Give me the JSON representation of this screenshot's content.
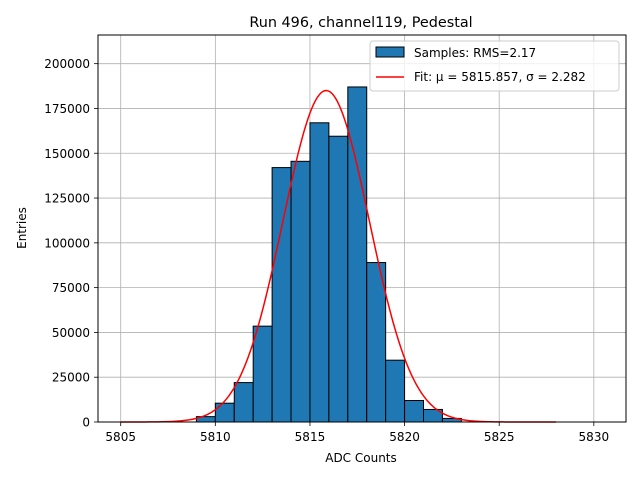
{
  "chart_data": {
    "type": "bar",
    "title": "Run 496, channel119, Pedestal",
    "xlabel": "ADC Counts",
    "ylabel": "Entries",
    "xlim": [
      5803.8,
      5831.7
    ],
    "ylim": [
      0,
      216000
    ],
    "xticks": [
      5805,
      5810,
      5815,
      5820,
      5825,
      5830
    ],
    "yticks": [
      0,
      25000,
      50000,
      75000,
      100000,
      125000,
      150000,
      175000,
      200000
    ],
    "grid": true,
    "legend_position": "top-right",
    "bin_width": 1,
    "bins": [
      {
        "left": 5809,
        "count": 3000
      },
      {
        "left": 5810,
        "count": 10500
      },
      {
        "left": 5811,
        "count": 22000
      },
      {
        "left": 5812,
        "count": 53500
      },
      {
        "left": 5813,
        "count": 142000
      },
      {
        "left": 5814,
        "count": 145500
      },
      {
        "left": 5815,
        "count": 167000
      },
      {
        "left": 5816,
        "count": 159500
      },
      {
        "left": 5817,
        "count": 187000
      },
      {
        "left": 5818,
        "count": 89000
      },
      {
        "left": 5819,
        "count": 34500
      },
      {
        "left": 5820,
        "count": 12000
      },
      {
        "left": 5821,
        "count": 7000
      },
      {
        "left": 5822,
        "count": 2000
      }
    ],
    "fit": {
      "mu": 5815.857,
      "sigma": 2.282,
      "amplitude": 185000,
      "x_range": [
        5805,
        5828
      ]
    },
    "series": [
      {
        "name": "Samples: RMS=2.17",
        "color": "#1f77b4",
        "kind": "histogram"
      },
      {
        "name": "Fit: μ = 5815.857, σ = 2.282",
        "color": "#ff0000",
        "kind": "line"
      }
    ]
  }
}
